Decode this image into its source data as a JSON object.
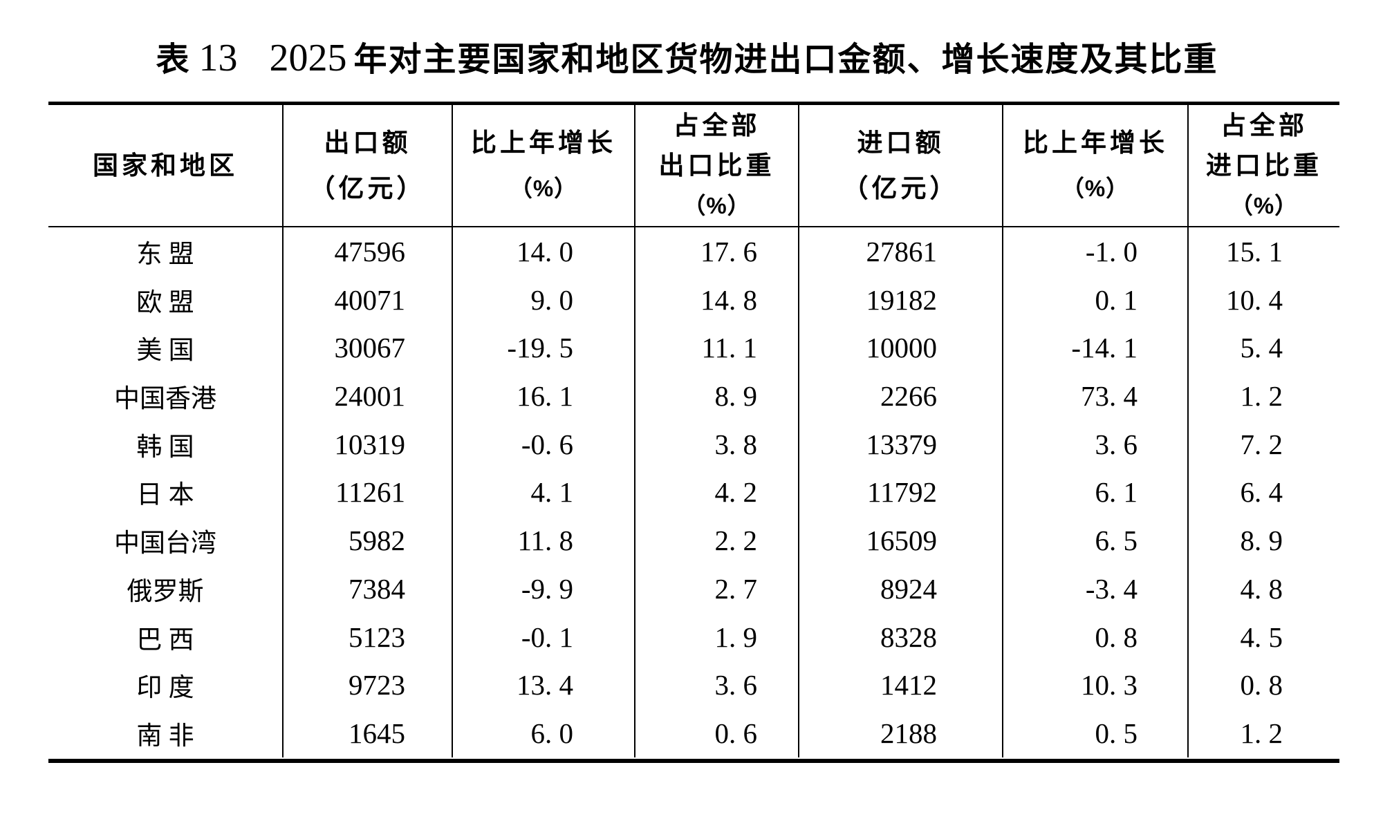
{
  "title": {
    "prefix": "表",
    "table_number": "13",
    "year": "2025",
    "text": "年对主要国家和地区货物进出口金额、增长速度及其比重"
  },
  "table": {
    "columns": [
      {
        "key": "region",
        "header_lines": [
          "国家和地区"
        ]
      },
      {
        "key": "export_value",
        "header_lines": [
          "出口额",
          "（亿元）"
        ]
      },
      {
        "key": "export_growth",
        "header_lines": [
          "比上年增长",
          "（%）"
        ]
      },
      {
        "key": "export_share",
        "header_lines": [
          "占全部",
          "出口比重",
          "（%）"
        ]
      },
      {
        "key": "import_value",
        "header_lines": [
          "进口额",
          "（亿元）"
        ]
      },
      {
        "key": "import_growth",
        "header_lines": [
          "比上年增长",
          "（%）"
        ]
      },
      {
        "key": "import_share",
        "header_lines": [
          "占全部",
          "进口比重",
          "（%）"
        ]
      }
    ],
    "rows": [
      {
        "region": "东 盟",
        "export_value": "47596",
        "export_growth": "14. 0",
        "export_share": "17. 6",
        "import_value": "27861",
        "import_growth": "-1. 0",
        "import_share": "15. 1"
      },
      {
        "region": "欧 盟",
        "export_value": "40071",
        "export_growth": "9. 0",
        "export_share": "14. 8",
        "import_value": "19182",
        "import_growth": "0. 1",
        "import_share": "10. 4"
      },
      {
        "region": "美 国",
        "export_value": "30067",
        "export_growth": "-19. 5",
        "export_share": "11. 1",
        "import_value": "10000",
        "import_growth": "-14. 1",
        "import_share": "5. 4"
      },
      {
        "region": "中国香港",
        "export_value": "24001",
        "export_growth": "16. 1",
        "export_share": "8. 9",
        "import_value": "2266",
        "import_growth": "73. 4",
        "import_share": "1. 2"
      },
      {
        "region": "韩 国",
        "export_value": "10319",
        "export_growth": "-0. 6",
        "export_share": "3. 8",
        "import_value": "13379",
        "import_growth": "3. 6",
        "import_share": "7. 2"
      },
      {
        "region": "日 本",
        "export_value": "11261",
        "export_growth": "4. 1",
        "export_share": "4. 2",
        "import_value": "11792",
        "import_growth": "6. 1",
        "import_share": "6. 4"
      },
      {
        "region": "中国台湾",
        "export_value": "5982",
        "export_growth": "11. 8",
        "export_share": "2. 2",
        "import_value": "16509",
        "import_growth": "6. 5",
        "import_share": "8. 9"
      },
      {
        "region": "俄罗斯",
        "export_value": "7384",
        "export_growth": "-9. 9",
        "export_share": "2. 7",
        "import_value": "8924",
        "import_growth": "-3. 4",
        "import_share": "4. 8"
      },
      {
        "region": "巴 西",
        "export_value": "5123",
        "export_growth": "-0. 1",
        "export_share": "1. 9",
        "import_value": "8328",
        "import_growth": "0. 8",
        "import_share": "4. 5"
      },
      {
        "region": "印 度",
        "export_value": "9723",
        "export_growth": "13. 4",
        "export_share": "3. 6",
        "import_value": "1412",
        "import_growth": "10. 3",
        "import_share": "0. 8"
      },
      {
        "region": "南 非",
        "export_value": "1645",
        "export_growth": "6. 0",
        "export_share": "0. 6",
        "import_value": "2188",
        "import_growth": "0. 5",
        "import_share": "1. 2"
      }
    ]
  }
}
